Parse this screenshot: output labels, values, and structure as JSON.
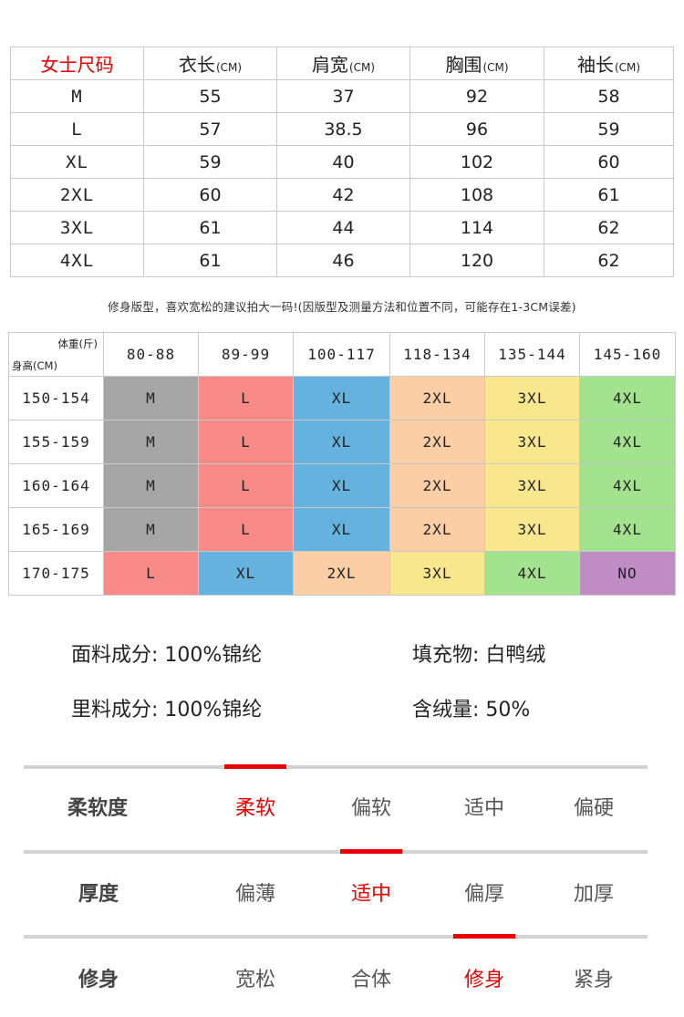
{
  "size_table": {
    "title": "女士尺码",
    "columns": [
      {
        "name": "衣长",
        "unit": "(CM)"
      },
      {
        "name": "肩宽",
        "unit": "(CM)"
      },
      {
        "name": "胸围",
        "unit": "(CM)"
      },
      {
        "name": "袖长",
        "unit": "(CM)"
      }
    ],
    "rows": [
      {
        "size": "M",
        "values": [
          "55",
          "37",
          "92",
          "58"
        ]
      },
      {
        "size": "L",
        "values": [
          "57",
          "38.5",
          "96",
          "59"
        ]
      },
      {
        "size": "XL",
        "values": [
          "59",
          "40",
          "102",
          "60"
        ]
      },
      {
        "size": "2XL",
        "values": [
          "60",
          "42",
          "108",
          "61"
        ]
      },
      {
        "size": "3XL",
        "values": [
          "61",
          "44",
          "114",
          "62"
        ]
      },
      {
        "size": "4XL",
        "values": [
          "61",
          "46",
          "120",
          "62"
        ]
      }
    ]
  },
  "note": "修身版型，喜欢宽松的建议拍大一码!(因版型及测量方法和位置不同，可能存在1-3CM误差)",
  "size_grid": {
    "corner_top": "体重(斤)",
    "corner_bottom": "身高(CM)",
    "weights": [
      "80-88",
      "89-99",
      "100-117",
      "118-134",
      "135-144",
      "145-160"
    ],
    "rows": [
      {
        "height": "150-154",
        "cells": [
          "M",
          "L",
          "XL",
          "2XL",
          "3XL",
          "4XL"
        ]
      },
      {
        "height": "155-159",
        "cells": [
          "M",
          "L",
          "XL",
          "2XL",
          "3XL",
          "4XL"
        ]
      },
      {
        "height": "160-164",
        "cells": [
          "M",
          "L",
          "XL",
          "2XL",
          "3XL",
          "4XL"
        ]
      },
      {
        "height": "165-169",
        "cells": [
          "M",
          "L",
          "XL",
          "2XL",
          "3XL",
          "4XL"
        ]
      },
      {
        "height": "170-175",
        "cells": [
          "L",
          "XL",
          "2XL",
          "3XL",
          "4XL",
          "NO"
        ]
      }
    ],
    "colors": {
      "M": "#a6a6a6",
      "L": "#f88a88",
      "XL": "#66b2de",
      "2XL": "#fccea6",
      "3XL": "#f9e78e",
      "4XL": "#a3e28e",
      "NO": "#c08cc6"
    }
  },
  "material": {
    "fabric_label": "面料成分:",
    "fabric_value": "100%锦纶",
    "filling_label": "填充物:",
    "filling_value": "白鸭绒",
    "lining_label": "里料成分:",
    "lining_value": "100%锦纶",
    "down_label": "含绒量:",
    "down_value": "50%"
  },
  "attributes": [
    {
      "label": "柔软度",
      "options": [
        "柔软",
        "偏软",
        "适中",
        "偏硬"
      ],
      "selected": 0
    },
    {
      "label": "厚度",
      "options": [
        "偏薄",
        "适中",
        "偏厚",
        "加厚"
      ],
      "selected": 1
    },
    {
      "label": "修身",
      "options": [
        "宽松",
        "合体",
        "修身",
        "紧身"
      ],
      "selected": 2
    }
  ],
  "accent_color": "#e60000"
}
